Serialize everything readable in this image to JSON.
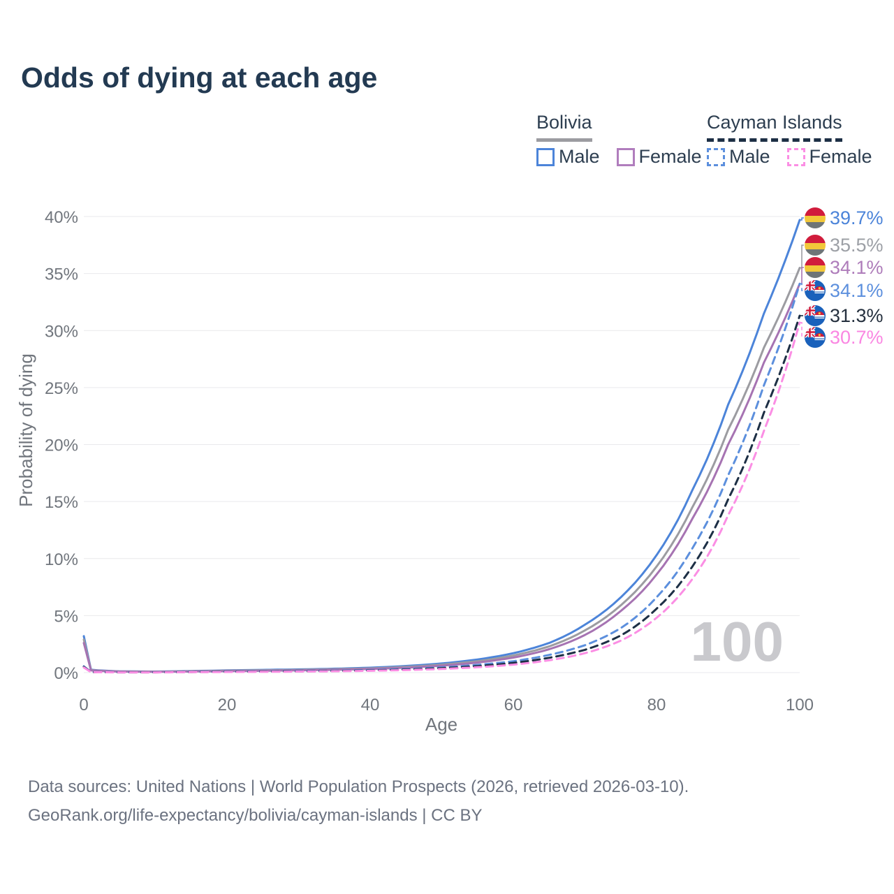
{
  "header": {
    "title": "Odds of dying at each age"
  },
  "legend": {
    "groups": [
      {
        "label": "Bolivia",
        "line_style": "solid",
        "underline_color": "#9c9ca1",
        "items": [
          {
            "label": "Male",
            "color": "#4c84d9"
          },
          {
            "label": "Female",
            "color": "#b07dbd"
          }
        ]
      },
      {
        "label": "Cayman Islands",
        "line_style": "dashed",
        "underline_color": "#1d2f45",
        "items": [
          {
            "label": "Male",
            "color": "#5c8fdd"
          },
          {
            "label": "Female",
            "color": "#fb8ee4"
          }
        ]
      }
    ]
  },
  "footer": {
    "line1": "Data sources: United Nations | World Population Prospects (2026, retrieved 2026-03-10).",
    "line2": "GeoRank.org/life-expectancy/bolivia/cayman-islands | CC BY"
  },
  "chart_data": {
    "type": "line",
    "title": "Odds of dying at each age",
    "xlabel": "Age",
    "ylabel": "Probability of dying",
    "xlim": [
      0,
      100
    ],
    "ylim_percent": [
      0,
      40
    ],
    "grid": "horizontal-only",
    "watermark": "100",
    "x_ticks": [
      0,
      20,
      40,
      60,
      80,
      100
    ],
    "x_tick_labels": [
      "0",
      "20",
      "40",
      "60",
      "80",
      "100"
    ],
    "y_ticks_percent": [
      0,
      5,
      10,
      15,
      20,
      25,
      30,
      35,
      40
    ],
    "y_tick_labels": [
      "0%",
      "5%",
      "10%",
      "15%",
      "20%",
      "25%",
      "30%",
      "35%",
      "40%"
    ],
    "ages": [
      0,
      1,
      5,
      10,
      15,
      20,
      25,
      30,
      35,
      40,
      45,
      50,
      55,
      60,
      65,
      70,
      75,
      80,
      85,
      90,
      95,
      100
    ],
    "series": [
      {
        "name": "Bolivia Male",
        "country": "Bolivia",
        "sex": "Male",
        "style": "solid",
        "color": "#4c84d9",
        "label_color": "#4c84d9",
        "flag": "bolivia",
        "end_label": "39.7%",
        "end_value_percent": 39.7,
        "values_percent": [
          3.2,
          0.25,
          0.11,
          0.09,
          0.14,
          0.2,
          0.24,
          0.28,
          0.34,
          0.43,
          0.58,
          0.8,
          1.15,
          1.7,
          2.6,
          4.2,
          6.6,
          10.3,
          16.0,
          23.5,
          31.5,
          39.7
        ]
      },
      {
        "name": "Bolivia Both sexes",
        "country": "Bolivia",
        "sex": "Both",
        "style": "solid",
        "color": "#9c9ca1",
        "label_color": "#9da0a6",
        "flag": "bolivia",
        "end_label": "35.5%",
        "end_value_percent": 35.5,
        "values_percent": [
          2.9,
          0.22,
          0.1,
          0.08,
          0.12,
          0.17,
          0.2,
          0.24,
          0.29,
          0.37,
          0.5,
          0.7,
          1.0,
          1.5,
          2.3,
          3.7,
          5.9,
          9.3,
          14.5,
          21.3,
          28.5,
          35.5
        ]
      },
      {
        "name": "Bolivia Female",
        "country": "Bolivia",
        "sex": "Female",
        "style": "solid",
        "color": "#a673b2",
        "label_color": "#ae7cba",
        "flag": "bolivia",
        "end_label": "34.1%",
        "end_value_percent": 34.1,
        "values_percent": [
          2.6,
          0.19,
          0.09,
          0.07,
          0.1,
          0.13,
          0.16,
          0.2,
          0.25,
          0.32,
          0.43,
          0.61,
          0.88,
          1.32,
          2.05,
          3.3,
          5.4,
          8.6,
          13.5,
          20.0,
          27.2,
          34.1
        ]
      },
      {
        "name": "Cayman Islands Male",
        "country": "Cayman Islands",
        "sex": "Male",
        "style": "dashed",
        "color": "#5c8fdd",
        "label_color": "#5c8fdd",
        "flag": "cayman",
        "end_label": "34.1%",
        "end_value_percent": 34.1,
        "values_percent": [
          0.55,
          0.05,
          0.03,
          0.03,
          0.06,
          0.09,
          0.11,
          0.14,
          0.17,
          0.23,
          0.32,
          0.46,
          0.68,
          1.0,
          1.55,
          2.4,
          3.9,
          6.6,
          10.9,
          17.3,
          25.2,
          34.1
        ]
      },
      {
        "name": "Cayman Islands Both sexes",
        "country": "Cayman Islands",
        "sex": "Both",
        "style": "dashed",
        "color": "#1d2f45",
        "label_color": "#25303e",
        "flag": "cayman",
        "end_label": "31.3%",
        "end_value_percent": 31.3,
        "values_percent": [
          0.5,
          0.045,
          0.025,
          0.025,
          0.05,
          0.07,
          0.09,
          0.11,
          0.14,
          0.19,
          0.27,
          0.39,
          0.57,
          0.85,
          1.3,
          2.0,
          3.25,
          5.6,
          9.3,
          15.2,
          22.8,
          31.3
        ]
      },
      {
        "name": "Cayman Islands Female",
        "country": "Cayman Islands",
        "sex": "Female",
        "style": "dashed",
        "color": "#fb8ee4",
        "label_color": "#fa87e2",
        "flag": "cayman",
        "end_label": "30.7%",
        "end_value_percent": 30.7,
        "values_percent": [
          0.45,
          0.04,
          0.02,
          0.02,
          0.04,
          0.055,
          0.07,
          0.09,
          0.12,
          0.16,
          0.22,
          0.32,
          0.47,
          0.7,
          1.08,
          1.7,
          2.8,
          4.8,
          8.2,
          13.8,
          21.2,
          30.7
        ]
      }
    ]
  }
}
